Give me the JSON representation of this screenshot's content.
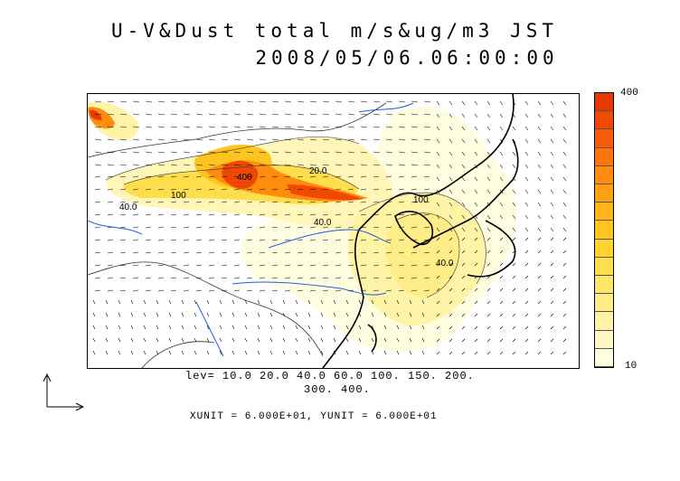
{
  "title_line1": "U-V&Dust total m/s&ug/m3 JST",
  "title_line2": "2008/05/06.06:00:00",
  "levels_line1": "lev= 10.0 20.0 40.0 60.0 100. 150. 200.",
  "levels_line2": "300. 400.",
  "units_line": "XUNIT = 6.000E+01, YUNIT = 6.000E+01",
  "colorbar": {
    "max_label": "400",
    "min_label": "10",
    "colors": [
      "#fffde0",
      "#fff8c4",
      "#fff3a6",
      "#ffed88",
      "#ffe66a",
      "#ffde4c",
      "#ffd430",
      "#ffc420",
      "#ffb418",
      "#ffa010",
      "#ff8c0c",
      "#ff7608",
      "#f85c04",
      "#f04a02",
      "#e83a00"
    ]
  },
  "contour_labels": [
    "100",
    "400",
    "40.0",
    "40.0",
    "40.0",
    "20.0",
    "100"
  ],
  "colors": {
    "coastline": "#000000",
    "rivers": "#1a5fe0",
    "border": "#333333"
  },
  "icons": {
    "reference_vector": "reference-vector-arrow-icon"
  }
}
